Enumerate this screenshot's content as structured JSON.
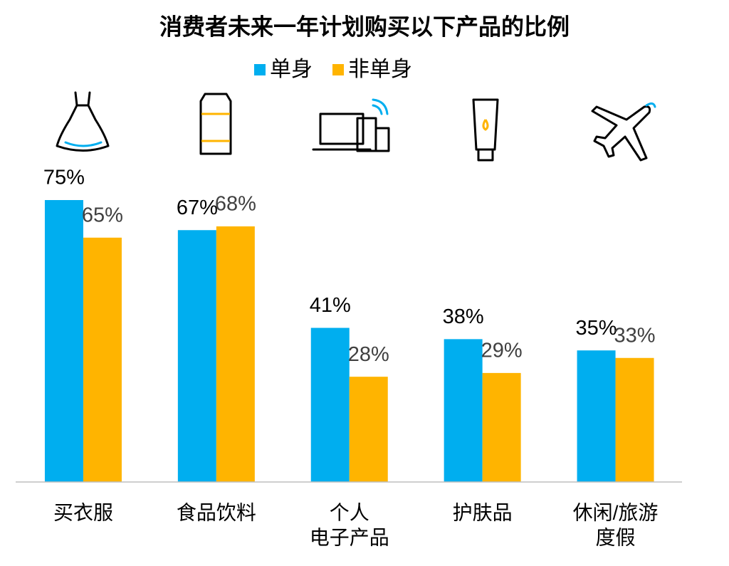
{
  "chart_data": {
    "type": "bar",
    "title": "消费者未来一年计划购买以下产品的比例",
    "categories": [
      [
        "买衣服"
      ],
      [
        "食品饮料"
      ],
      [
        "个人",
        "电子产品"
      ],
      [
        "护肤品"
      ],
      [
        "休闲/旅游",
        "度假"
      ]
    ],
    "series": [
      {
        "name": "单身",
        "color": "#00aeef",
        "label_color": "#000000",
        "values": [
          75,
          67,
          41,
          38,
          35
        ],
        "value_labels": [
          "75%",
          "67%",
          "41%",
          "38%",
          "35%"
        ]
      },
      {
        "name": "非单身",
        "color": "#ffb400",
        "label_color": "#404040",
        "values": [
          65,
          68,
          28,
          29,
          33
        ],
        "value_labels": [
          "65%",
          "68%",
          "28%",
          "29%",
          "33%"
        ]
      }
    ],
    "ylim": [
      0,
      80
    ]
  }
}
